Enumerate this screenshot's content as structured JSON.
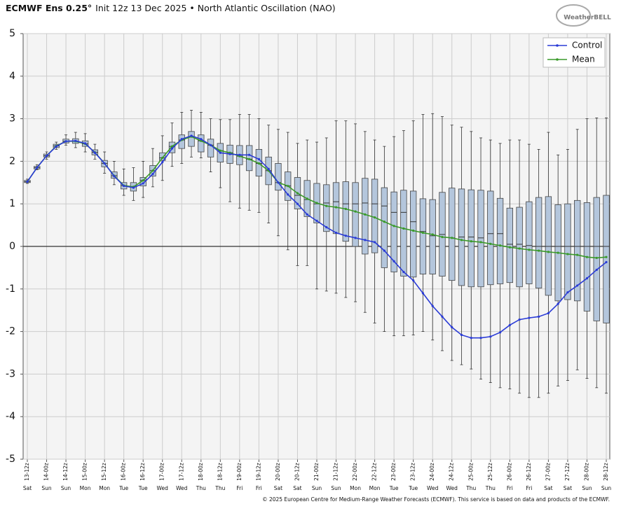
{
  "chart_data": {
    "type": "box",
    "title": "ECMWF Ens 0.25°",
    "subtitle": "Init 12z 13 Dec 2025 • North Atlantic Oscillation (NAO)",
    "logo": "WeatherBELL",
    "footer": "© 2025 European Centre for Medium-Range Weather Forecasts (ECMWF). This service is based on data and products of the ECMWF.",
    "categories": [
      "13-12z",
      null,
      "14-00z",
      null,
      "14-12z",
      null,
      "15-00z",
      null,
      "15-12z",
      null,
      "16-00z",
      null,
      "16-12z",
      null,
      "17-00z",
      null,
      "17-12z",
      null,
      "18-00z",
      null,
      "18-12z",
      null,
      "19-00z",
      null,
      "19-12z",
      null,
      "20-00z",
      null,
      "20-12z",
      null,
      "21-00z",
      null,
      "21-12z",
      null,
      "22-00z",
      null,
      "22-12z",
      null,
      "23-00z",
      null,
      "23-12z",
      null,
      "24-00z",
      null,
      "24-12z",
      null,
      "25-00z",
      null,
      "25-12z",
      null,
      "26-00z",
      null,
      "26-12z",
      null,
      "27-00z",
      null,
      "27-12z",
      null,
      "28-00z",
      null,
      "28-12z"
    ],
    "weekdays": [
      "Sat",
      null,
      "Sun",
      null,
      "Sun",
      null,
      "Mon",
      null,
      "Mon",
      null,
      "Tue",
      null,
      "Tue",
      null,
      "Wed",
      null,
      "Wed",
      null,
      "Thu",
      null,
      "Thu",
      null,
      "Fri",
      null,
      "Fri",
      null,
      "Sat",
      null,
      "Sat",
      null,
      "Sun",
      null,
      "Sun",
      null,
      "Mon",
      null,
      "Mon",
      null,
      "Tue",
      null,
      "Tue",
      null,
      "Wed",
      null,
      "Wed",
      null,
      "Thu",
      null,
      "Thu",
      null,
      "Fri",
      null,
      "Fri",
      null,
      "Sat",
      null,
      "Sat",
      null,
      "Sun",
      null,
      "Sun"
    ],
    "boxes": {
      "color": "#b4c6dc",
      "low": [
        1.48,
        1.8,
        2.05,
        2.28,
        2.38,
        2.32,
        2.22,
        2.05,
        1.72,
        1.45,
        1.2,
        1.08,
        1.15,
        1.4,
        1.55,
        1.88,
        1.95,
        2.1,
        2.08,
        1.75,
        1.38,
        1.05,
        0.9,
        0.85,
        0.8,
        0.55,
        0.25,
        -0.08,
        -0.45,
        -0.45,
        -1.0,
        -1.05,
        -1.1,
        -1.2,
        -1.3,
        -1.55,
        -1.8,
        -2.0,
        -2.1,
        -2.1,
        -2.08,
        -2.0,
        -2.2,
        -2.45,
        -2.68,
        -2.78,
        -2.88,
        -3.12,
        -3.2,
        -3.32,
        -3.35,
        -3.45,
        -3.55,
        -3.55,
        -3.45,
        -3.28,
        -3.15,
        -2.9,
        -3.1,
        -3.32,
        -3.45
      ],
      "q1": [
        1.5,
        1.82,
        2.1,
        2.32,
        2.43,
        2.42,
        2.35,
        2.15,
        1.87,
        1.6,
        1.35,
        1.3,
        1.42,
        1.65,
        2.02,
        2.2,
        2.3,
        2.35,
        2.22,
        2.1,
        1.98,
        1.95,
        1.92,
        1.78,
        1.65,
        1.45,
        1.32,
        1.08,
        0.88,
        0.7,
        0.55,
        0.35,
        0.3,
        0.12,
        0.0,
        -0.18,
        -0.15,
        -0.5,
        -0.6,
        -0.7,
        -0.72,
        -0.65,
        -0.65,
        -0.7,
        -0.8,
        -0.92,
        -0.95,
        -0.95,
        -0.9,
        -0.88,
        -0.85,
        -0.95,
        -0.88,
        -0.98,
        -1.15,
        -1.28,
        -1.25,
        -1.28,
        -1.52,
        -1.75,
        -1.8
      ],
      "median": [
        1.52,
        1.85,
        2.13,
        2.36,
        2.47,
        2.47,
        2.41,
        2.21,
        1.95,
        1.66,
        1.43,
        1.4,
        1.55,
        1.78,
        2.08,
        2.35,
        2.5,
        2.58,
        2.48,
        2.38,
        2.25,
        2.2,
        2.12,
        2.05,
        1.95,
        1.78,
        1.5,
        1.42,
        1.2,
        1.1,
        1.0,
        1.02,
        1.05,
        1.0,
        1.0,
        1.02,
        1.0,
        0.95,
        0.8,
        0.8,
        0.58,
        0.35,
        0.25,
        0.28,
        0.2,
        0.22,
        0.22,
        0.2,
        0.3,
        0.3,
        0.05,
        0.05,
        0.02,
        0.0,
        0.0,
        0.0,
        0.0,
        0.0,
        0.0,
        0.0,
        0.0
      ],
      "q3": [
        1.55,
        1.88,
        2.17,
        2.4,
        2.52,
        2.53,
        2.48,
        2.27,
        2.02,
        1.75,
        1.5,
        1.5,
        1.62,
        1.9,
        2.2,
        2.45,
        2.62,
        2.7,
        2.62,
        2.52,
        2.42,
        2.38,
        2.37,
        2.37,
        2.28,
        2.1,
        1.95,
        1.75,
        1.62,
        1.55,
        1.48,
        1.45,
        1.5,
        1.52,
        1.5,
        1.6,
        1.58,
        1.38,
        1.28,
        1.32,
        1.3,
        1.12,
        1.1,
        1.27,
        1.37,
        1.35,
        1.33,
        1.32,
        1.3,
        1.13,
        0.9,
        0.92,
        1.05,
        1.15,
        1.17,
        0.98,
        1.0,
        1.08,
        1.03,
        1.15,
        1.2
      ],
      "high": [
        1.58,
        1.92,
        2.22,
        2.45,
        2.62,
        2.68,
        2.65,
        2.4,
        2.22,
        2.0,
        1.82,
        1.85,
        2.0,
        2.3,
        2.6,
        2.9,
        3.15,
        3.2,
        3.15,
        3.0,
        2.98,
        2.98,
        3.1,
        3.1,
        3.0,
        2.85,
        2.75,
        2.68,
        2.42,
        2.5,
        2.45,
        2.55,
        2.95,
        2.95,
        2.88,
        2.7,
        2.5,
        2.35,
        2.58,
        2.72,
        2.95,
        3.1,
        3.12,
        3.05,
        2.85,
        2.8,
        2.7,
        2.55,
        2.5,
        2.42,
        2.5,
        2.5,
        2.4,
        2.28,
        2.68,
        2.15,
        2.28,
        2.75,
        3.0,
        3.02,
        3.02
      ]
    },
    "series": [
      {
        "name": "Control",
        "color": "#2a3bd6",
        "values": [
          1.52,
          1.85,
          2.13,
          2.35,
          2.47,
          2.48,
          2.42,
          2.2,
          1.95,
          1.65,
          1.42,
          1.38,
          1.48,
          1.7,
          1.98,
          2.3,
          2.52,
          2.6,
          2.52,
          2.38,
          2.2,
          2.17,
          2.15,
          2.15,
          2.05,
          1.82,
          1.5,
          1.22,
          1.0,
          0.75,
          0.6,
          0.45,
          0.32,
          0.25,
          0.2,
          0.15,
          0.1,
          -0.1,
          -0.35,
          -0.6,
          -0.8,
          -1.1,
          -1.4,
          -1.65,
          -1.9,
          -2.08,
          -2.15,
          -2.15,
          -2.12,
          -2.02,
          -1.85,
          -1.72,
          -1.68,
          -1.65,
          -1.57,
          -1.35,
          -1.08,
          -0.92,
          -0.75,
          -0.55,
          -0.37
        ]
      },
      {
        "name": "Mean",
        "color": "#3a9a2a",
        "values": [
          1.52,
          1.85,
          2.13,
          2.36,
          2.47,
          2.47,
          2.41,
          2.21,
          1.95,
          1.66,
          1.43,
          1.4,
          1.55,
          1.78,
          2.08,
          2.35,
          2.5,
          2.58,
          2.48,
          2.38,
          2.25,
          2.2,
          2.12,
          2.05,
          1.95,
          1.78,
          1.5,
          1.42,
          1.25,
          1.12,
          1.02,
          0.95,
          0.92,
          0.88,
          0.82,
          0.75,
          0.68,
          0.58,
          0.48,
          0.42,
          0.37,
          0.32,
          0.28,
          0.22,
          0.2,
          0.15,
          0.12,
          0.1,
          0.06,
          0.02,
          -0.02,
          -0.05,
          -0.08,
          -0.1,
          -0.13,
          -0.15,
          -0.18,
          -0.2,
          -0.25,
          -0.27,
          -0.25
        ]
      }
    ],
    "ylim": [
      -5,
      5
    ],
    "yticks": [
      -5,
      -4,
      -3,
      -2,
      -1,
      0,
      1,
      2,
      3,
      4,
      5
    ],
    "grid": true,
    "legend": "upper right"
  }
}
